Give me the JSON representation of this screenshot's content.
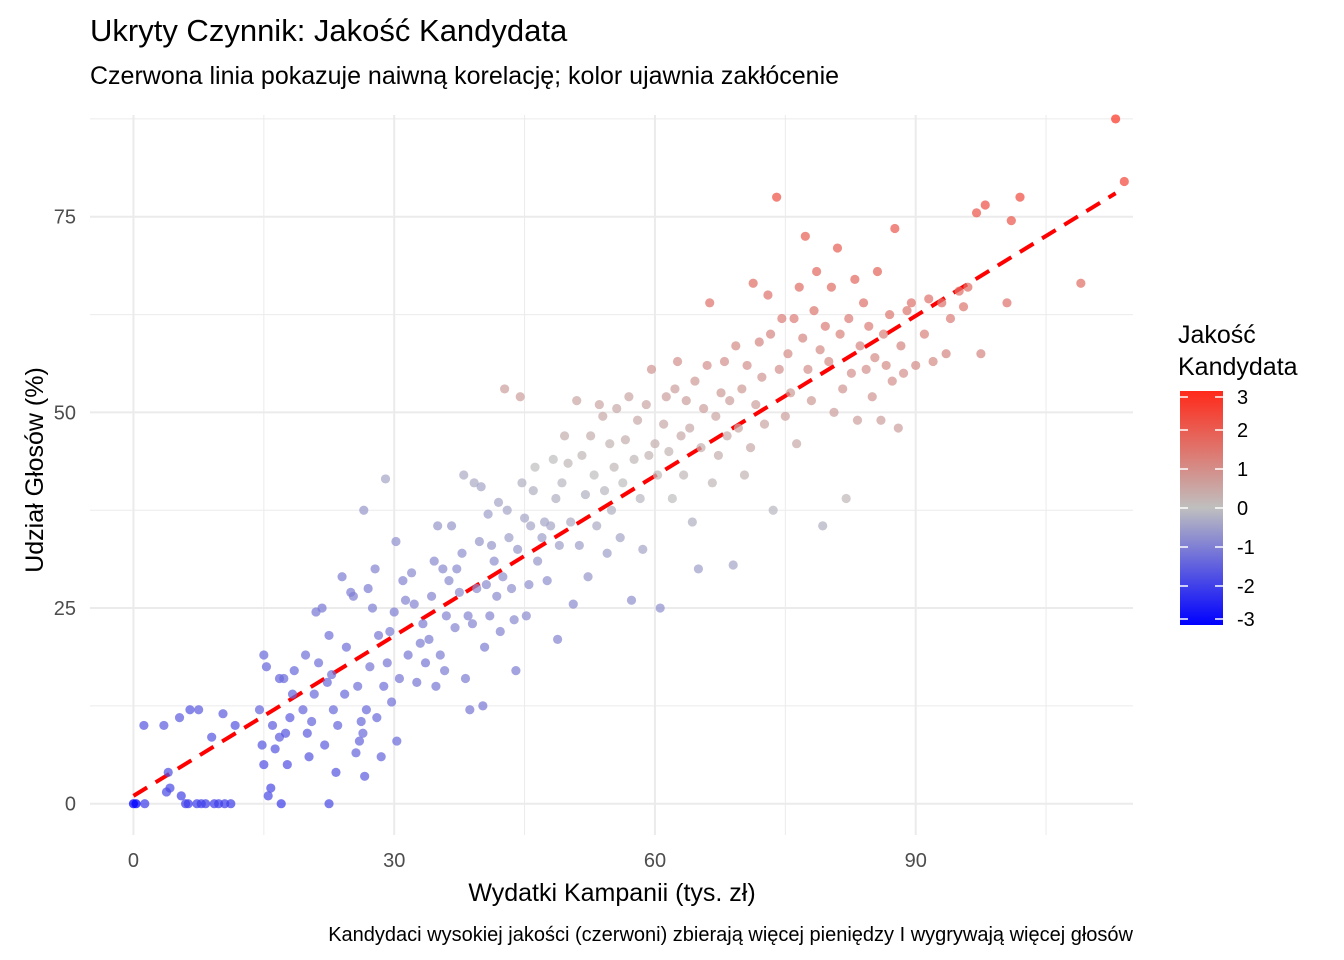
{
  "chart_data": {
    "type": "scatter",
    "title": "Ukryty Czynnik: Jakość Kandydata",
    "subtitle": "Czerwona linia pokazuje naiwną korelację; kolor ujawnia zakłócenie",
    "xlabel": "Wydatki Kampanii (tys. zł)",
    "ylabel": "Udział Głosów (%)",
    "caption": "Kandydaci wysokiej jakości (czerwoni) zbierają więcej pieniędzy I wygrywają więcej głosów",
    "xlim": [
      -5,
      115
    ],
    "ylim": [
      -4,
      88
    ],
    "x_ticks": [
      0,
      30,
      60,
      90
    ],
    "x_tick_labels": [
      "0",
      "30",
      "60",
      "90"
    ],
    "y_ticks": [
      0,
      25,
      50,
      75
    ],
    "y_tick_labels": [
      "0",
      "25",
      "50",
      "75"
    ],
    "grid": true,
    "legend": {
      "title_lines": [
        "Jakość",
        "Kandydata"
      ],
      "placement": "right",
      "min": -3,
      "max": 3,
      "ticks": [
        3,
        2,
        1,
        0,
        -1,
        -2,
        -3
      ],
      "tick_labels": [
        "3",
        "2",
        "1",
        "0",
        "-1",
        "-2",
        "-3"
      ],
      "low_color": "#0000ff",
      "mid_color": "#bfbfbf",
      "high_color": "#ff2a1a"
    },
    "trend_line": {
      "color": "#ff0000",
      "style": "dashed",
      "x": [
        0,
        113
      ],
      "y": [
        1,
        78
      ]
    },
    "points_note_fields": [
      "x",
      "y",
      "quality"
    ],
    "points": [
      [
        0,
        0,
        -3
      ],
      [
        0.3,
        0,
        -3
      ],
      [
        1.2,
        10,
        -1.6
      ],
      [
        1.3,
        0,
        -2
      ],
      [
        3.5,
        10,
        -1.5
      ],
      [
        3.8,
        1.5,
        -1.8
      ],
      [
        4.0,
        4,
        -1.7
      ],
      [
        4.2,
        2,
        -1.8
      ],
      [
        5.3,
        11,
        -1.5
      ],
      [
        5.5,
        1,
        -1.9
      ],
      [
        6.0,
        0,
        -2
      ],
      [
        6.3,
        0,
        -2
      ],
      [
        6.5,
        12,
        -1.6
      ],
      [
        7.3,
        0,
        -2
      ],
      [
        7.5,
        12,
        -1.5
      ],
      [
        7.8,
        0,
        -2
      ],
      [
        8.3,
        0,
        -2
      ],
      [
        9.0,
        8.5,
        -1.6
      ],
      [
        9.3,
        0,
        -2
      ],
      [
        9.8,
        0,
        -2
      ],
      [
        10.3,
        11.5,
        -1.5
      ],
      [
        10.5,
        0,
        -2
      ],
      [
        11.2,
        0,
        -2
      ],
      [
        11.7,
        10,
        -1.6
      ],
      [
        14.5,
        12,
        -1.4
      ],
      [
        14.8,
        7.5,
        -1.6
      ],
      [
        15.0,
        5,
        -1.7
      ],
      [
        15.0,
        19,
        -1.3
      ],
      [
        15.3,
        17.5,
        -1.4
      ],
      [
        15.5,
        1,
        -1.8
      ],
      [
        15.8,
        2,
        -1.8
      ],
      [
        16.0,
        10,
        -1.5
      ],
      [
        16.3,
        7,
        -1.6
      ],
      [
        16.8,
        8.5,
        -1.5
      ],
      [
        16.8,
        16,
        -1.4
      ],
      [
        17.0,
        0,
        -2
      ],
      [
        17.3,
        16,
        -1.3
      ],
      [
        17.5,
        9,
        -1.6
      ],
      [
        17.7,
        5,
        -1.7
      ],
      [
        18.0,
        11,
        -1.5
      ],
      [
        18.3,
        14,
        -1.4
      ],
      [
        18.5,
        17,
        -1.3
      ],
      [
        19.5,
        12,
        -1.4
      ],
      [
        19.8,
        19,
        -1.2
      ],
      [
        20.2,
        6,
        -1.6
      ],
      [
        20.0,
        9,
        -1.5
      ],
      [
        20.5,
        10.5,
        -1.4
      ],
      [
        20.8,
        14,
        -1.3
      ],
      [
        21.0,
        24.5,
        -1.1
      ],
      [
        21.3,
        18,
        -1.2
      ],
      [
        21.7,
        25,
        -1.1
      ],
      [
        22.0,
        7.5,
        -1.5
      ],
      [
        22.3,
        15.5,
        -1.3
      ],
      [
        22.5,
        21.5,
        -1.2
      ],
      [
        22.5,
        0,
        -1.8
      ],
      [
        22.8,
        16.5,
        -1.2
      ],
      [
        23.0,
        12,
        -1.3
      ],
      [
        23.3,
        4,
        -1.6
      ],
      [
        23.5,
        10,
        -1.4
      ],
      [
        24.0,
        29,
        -1.0
      ],
      [
        24.3,
        14,
        -1.3
      ],
      [
        24.5,
        20,
        -1.2
      ],
      [
        25.0,
        27,
        -1.0
      ],
      [
        25.3,
        26.5,
        -1.0
      ],
      [
        25.6,
        6.5,
        -1.4
      ],
      [
        25.8,
        15,
        -1.2
      ],
      [
        26.0,
        8,
        -1.4
      ],
      [
        26.2,
        10.5,
        -1.3
      ],
      [
        26.4,
        9,
        -1.3
      ],
      [
        26.5,
        37.5,
        -0.6
      ],
      [
        26.6,
        3.5,
        -1.5
      ],
      [
        26.8,
        12,
        -1.3
      ],
      [
        27.0,
        27.5,
        -1.0
      ],
      [
        27.2,
        17.5,
        -1.1
      ],
      [
        27.5,
        25,
        -1.0
      ],
      [
        27.8,
        30,
        -0.9
      ],
      [
        28.0,
        11,
        -1.3
      ],
      [
        28.2,
        21.5,
        -1.1
      ],
      [
        28.5,
        6,
        -1.4
      ],
      [
        28.8,
        15,
        -1.2
      ],
      [
        29.0,
        41.5,
        -0.4
      ],
      [
        29.2,
        18,
        -1.1
      ],
      [
        29.5,
        22,
        -1.0
      ],
      [
        29.7,
        13,
        -1.2
      ],
      [
        30.0,
        24.5,
        -1.0
      ],
      [
        30.2,
        33.5,
        -0.7
      ],
      [
        30.3,
        8,
        -1.3
      ],
      [
        30.6,
        16,
        -1.1
      ],
      [
        31.0,
        28.5,
        -0.9
      ],
      [
        31.3,
        26,
        -0.9
      ],
      [
        31.6,
        19,
        -1.1
      ],
      [
        32.0,
        29.5,
        -0.8
      ],
      [
        32.3,
        25.5,
        -0.9
      ],
      [
        32.6,
        15.5,
        -1.1
      ],
      [
        33.0,
        20.5,
        -1.0
      ],
      [
        33.3,
        23,
        -1.0
      ],
      [
        33.6,
        18,
        -1.1
      ],
      [
        34.0,
        21,
        -1.0
      ],
      [
        34.3,
        26.5,
        -0.9
      ],
      [
        34.6,
        31,
        -0.8
      ],
      [
        34.8,
        15,
        -1.1
      ],
      [
        35.0,
        35.5,
        -0.6
      ],
      [
        35.3,
        19,
        -1.0
      ],
      [
        35.6,
        30,
        -0.8
      ],
      [
        35.8,
        17,
        -1.0
      ],
      [
        36.0,
        24,
        -0.9
      ],
      [
        36.3,
        28.5,
        -0.8
      ],
      [
        36.6,
        35.5,
        -0.6
      ],
      [
        37.0,
        22.5,
        -0.9
      ],
      [
        37.2,
        30,
        -0.8
      ],
      [
        37.5,
        27,
        -0.8
      ],
      [
        37.8,
        32,
        -0.7
      ],
      [
        38.0,
        42,
        -0.3
      ],
      [
        38.2,
        16,
        -1.0
      ],
      [
        38.5,
        24,
        -0.9
      ],
      [
        38.7,
        12,
        -1.1
      ],
      [
        39.0,
        23,
        -0.9
      ],
      [
        39.2,
        41,
        -0.3
      ],
      [
        39.5,
        27.5,
        -0.8
      ],
      [
        39.8,
        33.5,
        -0.6
      ],
      [
        40.0,
        40.5,
        -0.4
      ],
      [
        40.2,
        12.5,
        -1.1
      ],
      [
        40.4,
        20,
        -1.0
      ],
      [
        40.6,
        28,
        -0.8
      ],
      [
        40.8,
        37,
        -0.5
      ],
      [
        41.0,
        24,
        -0.9
      ],
      [
        41.2,
        33,
        -0.6
      ],
      [
        41.5,
        31,
        -0.7
      ],
      [
        41.8,
        26.5,
        -0.8
      ],
      [
        42.0,
        38.5,
        -0.4
      ],
      [
        42.2,
        22,
        -0.9
      ],
      [
        42.5,
        29,
        -0.7
      ],
      [
        42.7,
        53,
        0.6
      ],
      [
        43.0,
        37.5,
        -0.4
      ],
      [
        43.2,
        34,
        -0.5
      ],
      [
        43.5,
        27.5,
        -0.7
      ],
      [
        43.8,
        23.5,
        -0.8
      ],
      [
        44.0,
        17,
        -1.0
      ],
      [
        44.2,
        32.5,
        -0.6
      ],
      [
        44.5,
        52,
        0.6
      ],
      [
        44.7,
        41,
        -0.2
      ],
      [
        45.0,
        36.5,
        -0.4
      ],
      [
        45.2,
        24,
        -0.8
      ],
      [
        45.5,
        28,
        -0.7
      ],
      [
        45.7,
        35.5,
        -0.4
      ],
      [
        46.0,
        40,
        -0.2
      ],
      [
        46.2,
        43,
        0.0
      ],
      [
        46.5,
        31,
        -0.6
      ],
      [
        47.0,
        34,
        -0.5
      ],
      [
        47.3,
        36,
        -0.4
      ],
      [
        47.6,
        28.5,
        -0.7
      ],
      [
        48.0,
        35.5,
        -0.4
      ],
      [
        48.3,
        44,
        0.0
      ],
      [
        48.6,
        39,
        -0.2
      ],
      [
        48.8,
        21,
        -0.9
      ],
      [
        49.0,
        33,
        -0.5
      ],
      [
        49.3,
        41,
        -0.1
      ],
      [
        49.6,
        47,
        0.3
      ],
      [
        50.0,
        43.5,
        0.1
      ],
      [
        50.3,
        36,
        -0.3
      ],
      [
        50.6,
        25.5,
        -0.8
      ],
      [
        51.0,
        51.5,
        0.5
      ],
      [
        51.3,
        33,
        -0.5
      ],
      [
        51.6,
        44.5,
        0.1
      ],
      [
        52.0,
        39.5,
        -0.2
      ],
      [
        52.3,
        29,
        -0.6
      ],
      [
        52.6,
        47,
        0.3
      ],
      [
        53.0,
        42,
        0.0
      ],
      [
        53.3,
        35.5,
        -0.3
      ],
      [
        53.6,
        51,
        0.5
      ],
      [
        54.0,
        49.5,
        0.4
      ],
      [
        54.2,
        40,
        -0.1
      ],
      [
        54.5,
        32,
        -0.5
      ],
      [
        54.8,
        46,
        0.2
      ],
      [
        55.0,
        37.5,
        -0.2
      ],
      [
        55.3,
        43,
        0.1
      ],
      [
        55.6,
        50.5,
        0.4
      ],
      [
        56.0,
        34,
        -0.4
      ],
      [
        56.3,
        41,
        0.0
      ],
      [
        56.6,
        46.5,
        0.3
      ],
      [
        57.0,
        52,
        0.5
      ],
      [
        57.3,
        26,
        -0.7
      ],
      [
        57.6,
        44,
        0.1
      ],
      [
        58.0,
        49,
        0.4
      ],
      [
        58.3,
        39,
        -0.1
      ],
      [
        58.6,
        32.5,
        -0.4
      ],
      [
        59.0,
        51,
        0.5
      ],
      [
        59.3,
        44.5,
        0.2
      ],
      [
        59.6,
        55.5,
        0.8
      ],
      [
        60.0,
        46,
        0.3
      ],
      [
        60.3,
        42,
        0.1
      ],
      [
        60.6,
        25,
        -0.7
      ],
      [
        61.0,
        48.5,
        0.4
      ],
      [
        61.3,
        52,
        0.6
      ],
      [
        61.6,
        45,
        0.2
      ],
      [
        62.0,
        39,
        0.0
      ],
      [
        62.3,
        53,
        0.6
      ],
      [
        62.6,
        56.5,
        0.9
      ],
      [
        63.0,
        47,
        0.4
      ],
      [
        63.3,
        42,
        0.1
      ],
      [
        63.6,
        51.5,
        0.6
      ],
      [
        64.0,
        48,
        0.4
      ],
      [
        64.3,
        36,
        -0.2
      ],
      [
        64.6,
        54,
        0.7
      ],
      [
        65.0,
        30,
        -0.5
      ],
      [
        65.3,
        45.5,
        0.3
      ],
      [
        65.6,
        50.5,
        0.6
      ],
      [
        66.0,
        56,
        0.9
      ],
      [
        66.3,
        64,
        1.5
      ],
      [
        66.6,
        41,
        0.1
      ],
      [
        67.0,
        49.5,
        0.5
      ],
      [
        67.3,
        44.5,
        0.3
      ],
      [
        67.6,
        52.5,
        0.7
      ],
      [
        68.0,
        56.5,
        0.9
      ],
      [
        68.3,
        47,
        0.4
      ],
      [
        68.6,
        51.5,
        0.6
      ],
      [
        69.0,
        30.5,
        -0.4
      ],
      [
        69.3,
        58.5,
        1.0
      ],
      [
        69.6,
        48,
        0.5
      ],
      [
        70.0,
        53,
        0.7
      ],
      [
        70.3,
        42,
        0.2
      ],
      [
        70.6,
        56,
        0.9
      ],
      [
        71.0,
        45.5,
        0.4
      ],
      [
        71.3,
        66.5,
        1.6
      ],
      [
        71.6,
        51,
        0.6
      ],
      [
        72.0,
        59,
        1.1
      ],
      [
        72.3,
        54.5,
        0.8
      ],
      [
        72.6,
        48.5,
        0.5
      ],
      [
        73.0,
        65,
        1.5
      ],
      [
        73.3,
        60,
        1.1
      ],
      [
        73.6,
        37.5,
        -0.1
      ],
      [
        74.0,
        77.5,
        2.2
      ],
      [
        74.3,
        55.5,
        0.9
      ],
      [
        74.6,
        62,
        1.3
      ],
      [
        75.0,
        49.5,
        0.6
      ],
      [
        75.3,
        57.5,
        1.0
      ],
      [
        75.6,
        52.5,
        0.7
      ],
      [
        76.0,
        62,
        1.3
      ],
      [
        76.3,
        46,
        0.4
      ],
      [
        76.6,
        66,
        1.6
      ],
      [
        77.0,
        59.5,
        1.1
      ],
      [
        77.3,
        72.5,
        1.9
      ],
      [
        77.6,
        55.5,
        0.9
      ],
      [
        78.0,
        51.5,
        0.7
      ],
      [
        78.3,
        63,
        1.4
      ],
      [
        78.6,
        68,
        1.7
      ],
      [
        79.0,
        58,
        1.0
      ],
      [
        79.3,
        35.5,
        -0.2
      ],
      [
        79.6,
        61,
        1.3
      ],
      [
        80.0,
        56.5,
        1.0
      ],
      [
        80.3,
        66,
        1.6
      ],
      [
        80.6,
        50,
        0.6
      ],
      [
        81.0,
        71,
        1.9
      ],
      [
        81.3,
        60,
        1.2
      ],
      [
        81.6,
        53,
        0.8
      ],
      [
        82.0,
        39,
        0.1
      ],
      [
        82.3,
        62,
        1.3
      ],
      [
        82.6,
        55,
        0.9
      ],
      [
        83.0,
        67,
        1.7
      ],
      [
        83.3,
        49,
        0.6
      ],
      [
        83.6,
        58.5,
        1.1
      ],
      [
        84.0,
        64,
        1.5
      ],
      [
        84.3,
        55.5,
        0.9
      ],
      [
        84.6,
        61,
        1.3
      ],
      [
        85.0,
        52,
        0.8
      ],
      [
        85.3,
        57,
        1.0
      ],
      [
        85.6,
        68,
        1.8
      ],
      [
        86.0,
        49,
        0.6
      ],
      [
        86.3,
        60,
        1.2
      ],
      [
        86.6,
        56,
        1.0
      ],
      [
        87.0,
        62.5,
        1.4
      ],
      [
        87.3,
        54,
        0.9
      ],
      [
        87.6,
        73.5,
        2.0
      ],
      [
        88.0,
        48,
        0.6
      ],
      [
        88.3,
        58.5,
        1.1
      ],
      [
        88.6,
        55,
        0.9
      ],
      [
        89.0,
        63,
        1.4
      ],
      [
        89.5,
        64,
        1.5
      ],
      [
        90.0,
        56,
        1.0
      ],
      [
        91.0,
        60,
        1.2
      ],
      [
        91.5,
        64.5,
        1.5
      ],
      [
        92.0,
        56.5,
        1.0
      ],
      [
        93.0,
        64,
        1.5
      ],
      [
        93.5,
        57.5,
        1.1
      ],
      [
        94.0,
        62,
        1.3
      ],
      [
        95.0,
        65.5,
        1.6
      ],
      [
        95.5,
        63.5,
        1.4
      ],
      [
        96.0,
        66,
        1.6
      ],
      [
        97.0,
        75.5,
        2.1
      ],
      [
        97.5,
        57.5,
        1.1
      ],
      [
        98.0,
        76.5,
        2.2
      ],
      [
        101.0,
        74.5,
        2.1
      ],
      [
        102.0,
        77.5,
        2.3
      ],
      [
        100.5,
        64,
        1.5
      ],
      [
        109.0,
        66.5,
        1.6
      ],
      [
        113.0,
        87.5,
        2.8
      ],
      [
        114.0,
        79.5,
        2.4
      ]
    ]
  }
}
